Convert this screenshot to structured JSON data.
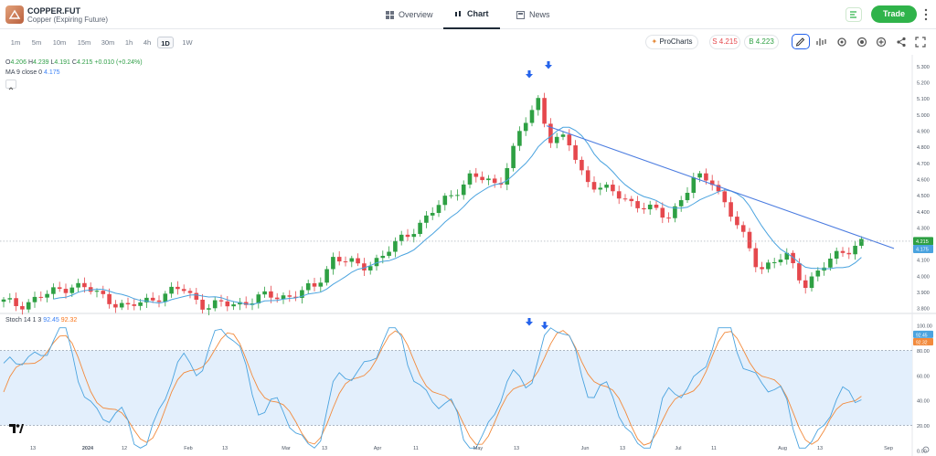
{
  "header": {
    "symbol": "COPPER.FUT",
    "subtitle": "Copper (Expiring Future)",
    "tabs": [
      {
        "label": "Overview",
        "icon": "grid-icon"
      },
      {
        "label": "Chart",
        "icon": "candles-icon",
        "active": true
      },
      {
        "label": "News",
        "icon": "news-icon"
      }
    ],
    "trade_label": "Trade"
  },
  "toolbar": {
    "timeframes": [
      "1m",
      "5m",
      "10m",
      "15m",
      "30m",
      "1h",
      "4h",
      "1D",
      "1W"
    ],
    "active_timeframe": "1D",
    "procharts_label": "ProCharts",
    "sell_label": "S 4.215",
    "buy_label": "B 4.223"
  },
  "ohlc": {
    "o_label": "O",
    "o": "4.206",
    "h_label": "H",
    "h": "4.239",
    "l_label": "L",
    "l": "4.191",
    "c_label": "C",
    "c": "4.215",
    "change": "+0.010 (+0.24%)"
  },
  "ma": {
    "label": "MA 9 close 0",
    "value": "4.175"
  },
  "stoch": {
    "label": "Stoch 14 1 3",
    "k": "92.45",
    "d": "92.32"
  },
  "colors": {
    "up": "#2ea043",
    "down": "#e5484d",
    "ma": "#4aa3df",
    "trend": "#4a7be0",
    "k": "#4aa3df",
    "d": "#f28a3c",
    "band": "#e3effc",
    "arrow": "#2563eb"
  },
  "chart_data": {
    "type": "candlestick",
    "price_axis": {
      "ticks": [
        "5.300",
        "5.200",
        "5.100",
        "5.000",
        "4.900",
        "4.800",
        "4.700",
        "4.600",
        "4.500",
        "4.400",
        "4.300",
        "4.200",
        "4.100",
        "4.000",
        "3.900",
        "3.800"
      ],
      "last_price": "4.215",
      "ma_price": "4.175",
      "range": [
        3.79,
        5.33
      ]
    },
    "stoch_axis": {
      "ticks": [
        "100.00",
        "80.00",
        "60.00",
        "40.00",
        "20.00",
        "0.00"
      ],
      "k_last": "92.45",
      "d_last": "92.32",
      "overbought": 80,
      "oversold": 20
    },
    "time_axis": [
      "13",
      "2024",
      "12",
      "Feb",
      "13",
      "Mar",
      "13",
      "Apr",
      "11",
      "May",
      "13",
      "Jun",
      "13",
      "Jul",
      "11",
      "Aug",
      "13",
      "Sep"
    ],
    "trendline": {
      "from": 4.93,
      "to": 4.17
    },
    "arrows": 2
  }
}
